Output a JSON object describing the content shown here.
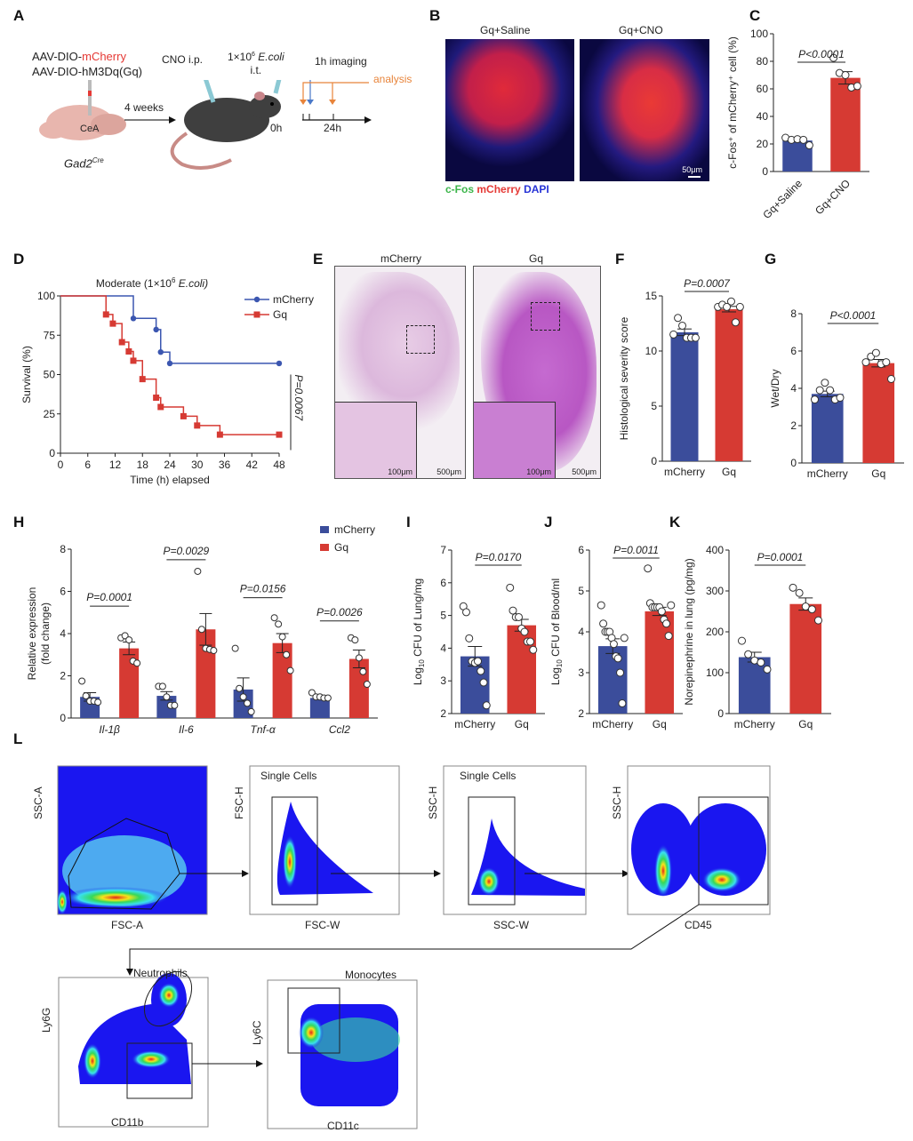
{
  "figure": {
    "panels": {
      "A": {
        "label": "A",
        "virus_prefix": "AAV-DIO-",
        "virus_mcherry": "mCherry",
        "virus_gq": "AAV-DIO-hM3Dq(Gq)",
        "region": "CeA",
        "genotype": "Gad2",
        "genotype_sup": "Cre",
        "interval": "4 weeks",
        "cno": "CNO i.p.",
        "ecoli_dose": "1×10",
        "ecoli_exp": "6",
        "ecoli_name": "E.coli",
        "ecoli_route": "i.t.",
        "imaging": "1h imaging",
        "analysis": "analysis",
        "t0": "0h",
        "t24": "24h",
        "colors": {
          "mcherry": "#e53935",
          "imaging": "#4a78c8",
          "analysis": "#e8843a"
        }
      },
      "B": {
        "label": "B",
        "titles": [
          "Gq+Saline",
          "Gq+CNO"
        ],
        "scale_bar": "50μm",
        "stain_cfos": "c-Fos",
        "stain_mcherry": "mCherry",
        "stain_dapi": "DAPI"
      },
      "E": {
        "label": "E",
        "titles": [
          "mCherry",
          "Gq"
        ],
        "inset_scale": "100μm",
        "main_scale": "500μm"
      },
      "L": {
        "label": "L",
        "plots": [
          {
            "x": "FSC-A",
            "y": "SSC-A",
            "gate": ""
          },
          {
            "x": "FSC-W",
            "y": "FSC-H",
            "gate": "Single Cells"
          },
          {
            "x": "SSC-W",
            "y": "SSC-H",
            "gate": "Single Cells"
          },
          {
            "x": "CD45",
            "y": "SSC-H",
            "gate": ""
          },
          {
            "x": "CD11b",
            "y": "Ly6G",
            "gate": "Neutrophils"
          },
          {
            "x": "CD11c",
            "y": "Ly6C",
            "gate": "Monocytes"
          }
        ]
      }
    }
  },
  "chart_data": [
    {
      "id": "C",
      "panel_label": "C",
      "type": "bar",
      "categories": [
        "Gq+Saline",
        "Gq+CNO"
      ],
      "values": [
        22.5,
        68
      ],
      "sem": [
        1,
        4.5
      ],
      "points": [
        [
          24.5,
          23,
          23.5,
          23,
          19
        ],
        [
          82.5,
          71.5,
          70,
          61,
          62
        ]
      ],
      "ylabel": "c-Fos⁺ of mCherry⁺ cell (%)",
      "ylim": [
        0,
        100
      ],
      "yticks": [
        0,
        20,
        40,
        60,
        80,
        100
      ],
      "pvalue": "P<0.0001",
      "colors": [
        "#3b4d9b",
        "#d63a33"
      ]
    },
    {
      "id": "D",
      "panel_label": "D",
      "type": "line",
      "title_prefix": "Moderate (1×10",
      "title_exp": "6",
      "title_suffix": " E.coli)",
      "xlabel": "Time (h) elapsed",
      "ylabel": "Survival (%)",
      "xlim": [
        0,
        48
      ],
      "ylim": [
        0,
        100
      ],
      "xticks": [
        0,
        6,
        12,
        18,
        24,
        30,
        36,
        42,
        48
      ],
      "yticks": [
        0,
        25,
        50,
        75,
        100
      ],
      "pvalue": "P=0.0067",
      "legend_position": "top-right",
      "series": [
        {
          "name": "mCherry",
          "color": "#3b56b0",
          "marker": "circle",
          "steps": [
            [
              0,
              100
            ],
            [
              16,
              85.7
            ],
            [
              21,
              78.6
            ],
            [
              22,
              64.3
            ],
            [
              24,
              57.1
            ],
            [
              48,
              57.1
            ]
          ]
        },
        {
          "name": "Gq",
          "color": "#d63a33",
          "marker": "square",
          "steps": [
            [
              0,
              100
            ],
            [
              10,
              88.2
            ],
            [
              11.5,
              82.4
            ],
            [
              13.5,
              70.6
            ],
            [
              15,
              64.7
            ],
            [
              16,
              58.8
            ],
            [
              18,
              47.1
            ],
            [
              21,
              35.3
            ],
            [
              22,
              29.4
            ],
            [
              27,
              23.5
            ],
            [
              30,
              17.6
            ],
            [
              35,
              11.8
            ],
            [
              48,
              11.8
            ]
          ]
        }
      ]
    },
    {
      "id": "F",
      "panel_label": "F",
      "type": "bar",
      "categories": [
        "mCherry",
        "Gq"
      ],
      "values": [
        11.7,
        13.8
      ],
      "sem": [
        0.3,
        0.25
      ],
      "points": [
        [
          11.5,
          13,
          12.3,
          11.2,
          11.2,
          11.2
        ],
        [
          14,
          14.2,
          14,
          14.5,
          12.6,
          14
        ]
      ],
      "ylabel": "Histological severity score",
      "ylim": [
        0,
        15
      ],
      "yticks": [
        0,
        5,
        10,
        15
      ],
      "pvalue": "P=0.0007",
      "colors": [
        "#3b4d9b",
        "#d63a33"
      ]
    },
    {
      "id": "G",
      "panel_label": "G",
      "type": "bar",
      "categories": [
        "mCherry",
        "Gq"
      ],
      "values": [
        3.7,
        5.35
      ],
      "sem": [
        0.15,
        0.2
      ],
      "points": [
        [
          3.4,
          3.9,
          4.3,
          3.9,
          3.4,
          3.5
        ],
        [
          5.4,
          5.7,
          5.9,
          5.3,
          5.4,
          4.5
        ]
      ],
      "ylabel": "Wet/Dry",
      "ylim": [
        0,
        8
      ],
      "yticks": [
        0,
        2,
        4,
        6,
        8
      ],
      "pvalue": "P<0.0001",
      "colors": [
        "#3b4d9b",
        "#d63a33"
      ]
    },
    {
      "id": "H",
      "panel_label": "H",
      "type": "bar",
      "categories": [
        "Il-1β",
        "Il-6",
        "Tnf-α",
        "Ccl2"
      ],
      "series": [
        {
          "name": "mCherry",
          "color": "#3b4d9b",
          "values": [
            1.0,
            1.05,
            1.35,
            0.95
          ],
          "sem": [
            0.2,
            0.2,
            0.55,
            0.05
          ],
          "points": [
            [
              1.75,
              1.05,
              0.8,
              0.8,
              0.75
            ],
            [
              1.5,
              1.5,
              1.0,
              0.6,
              0.6
            ],
            [
              3.3,
              1.4,
              1.0,
              0.7,
              0.3
            ],
            [
              1.2,
              1.0,
              1.0,
              0.95,
              0.95
            ]
          ]
        },
        {
          "name": "Gq",
          "color": "#d63a33",
          "values": [
            3.3,
            4.2,
            3.55,
            2.8
          ],
          "sem": [
            0.3,
            0.75,
            0.45,
            0.42
          ],
          "points": [
            [
              3.8,
              3.9,
              3.7,
              2.7,
              2.6
            ],
            [
              6.95,
              4.2,
              3.3,
              3.25,
              3.2
            ],
            [
              4.75,
              4.45,
              3.85,
              3.0,
              2.25
            ],
            [
              3.8,
              3.7,
              2.85,
              2.2,
              1.6
            ]
          ]
        }
      ],
      "ylabel": "Relative expression (fold change)",
      "ylim": [
        0,
        8
      ],
      "yticks": [
        0,
        2,
        4,
        6,
        8
      ],
      "pvalues": [
        "P=0.0001",
        "P=0.0029",
        "P=0.0156",
        "P=0.0026"
      ],
      "legend_position": "top-right"
    },
    {
      "id": "I",
      "panel_label": "I",
      "type": "bar",
      "categories": [
        "mCherry",
        "Gq"
      ],
      "values": [
        3.75,
        4.7
      ],
      "sem": [
        0.3,
        0.18
      ],
      "points": [
        [
          5.28,
          5.1,
          4.3,
          3.6,
          3.55,
          3.6,
          3.3,
          2.95,
          2.25
        ],
        [
          5.85,
          5.15,
          4.95,
          4.95,
          4.6,
          4.5,
          4.2,
          4.2,
          3.95
        ]
      ],
      "ylabel": "Log10 CFU of Lung/mg",
      "ylim": [
        2,
        7
      ],
      "yticks": [
        2,
        3,
        4,
        5,
        6,
        7
      ],
      "pvalue": "P=0.0170",
      "colors": [
        "#3b4d9b",
        "#d63a33"
      ]
    },
    {
      "id": "J",
      "panel_label": "J",
      "type": "bar",
      "categories": [
        "mCherry",
        "Gq"
      ],
      "values": [
        3.65,
        4.5
      ],
      "sem": [
        0.18,
        0.1
      ],
      "points": [
        [
          4.65,
          4.2,
          4.0,
          4.0,
          4.0,
          3.85,
          3.7,
          3.4,
          3.35,
          3.0,
          2.25,
          3.85
        ],
        [
          5.55,
          4.7,
          4.6,
          4.6,
          4.6,
          4.6,
          4.5,
          4.3,
          4.2,
          3.9,
          4.65
        ]
      ],
      "ylabel": "Log10 CFU of Blood/ml",
      "ylim": [
        2,
        6
      ],
      "yticks": [
        2,
        3,
        4,
        5,
        6
      ],
      "pvalue": "P=0.0011",
      "colors": [
        "#3b4d9b",
        "#d63a33"
      ]
    },
    {
      "id": "K",
      "panel_label": "K",
      "type": "bar",
      "categories": [
        "mCherry",
        "Gq"
      ],
      "values": [
        138,
        268
      ],
      "sem": [
        12,
        15
      ],
      "points": [
        [
          178,
          145,
          130,
          125,
          108
        ],
        [
          308,
          295,
          262,
          255,
          228
        ]
      ],
      "ylabel": "Norepinephrine in lung  (pg/mg)",
      "ylim": [
        0,
        400
      ],
      "yticks": [
        0,
        100,
        200,
        300,
        400
      ],
      "pvalue": "P=0.0001",
      "colors": [
        "#3b4d9b",
        "#d63a33"
      ]
    }
  ]
}
